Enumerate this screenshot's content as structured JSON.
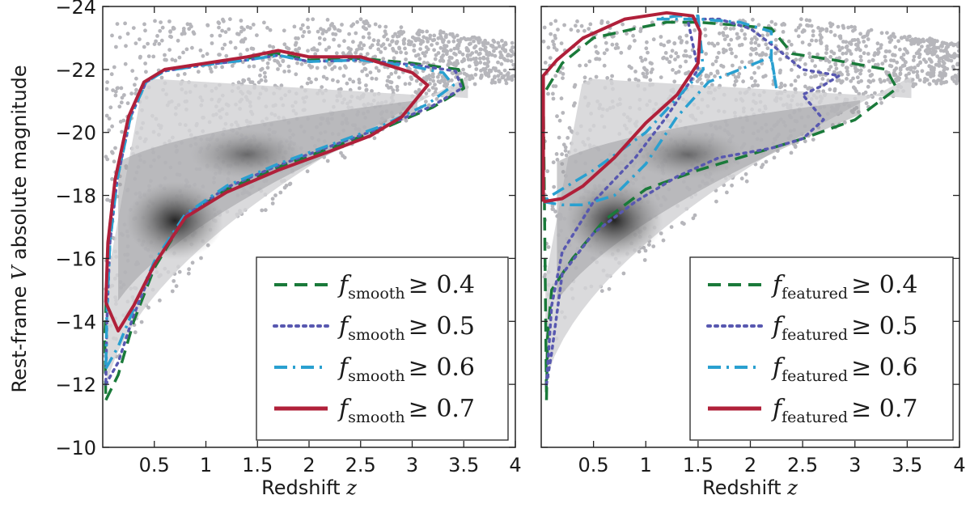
{
  "chart_data": [
    {
      "type": "scatter",
      "panel": "left",
      "xlabel": "Redshift",
      "xlabel_var": "z",
      "ylabel": "Rest-frame V absolute magnitude",
      "xlim": [
        0,
        4
      ],
      "ylim": [
        -10,
        -24
      ],
      "y_inverted": true,
      "grid": false,
      "legend_position": "lower-right",
      "x_ticks": [
        "0.5",
        "1",
        "1.5",
        "2",
        "2.5",
        "3",
        "3.5",
        "4"
      ],
      "y_ticks": [
        "−10",
        "−12",
        "−14",
        "−16",
        "−18",
        "−20",
        "−22",
        "−24"
      ],
      "background": "grey scatter of all galaxies with 2D density histogram (dark core near z≈0.7, V≈−17)",
      "density_peak": {
        "x": 0.7,
        "y": -17.2
      },
      "contours": [
        {
          "label_var": "f",
          "label_sub": "smooth",
          "label_rel": "≥ 0.4",
          "style": "dashed",
          "color": "#1a7a3a",
          "points": [
            [
              0.03,
              -11.5
            ],
            [
              0.15,
              -12.3
            ],
            [
              0.3,
              -14.0
            ],
            [
              0.5,
              -15.7
            ],
            [
              0.8,
              -17.3
            ],
            [
              1.2,
              -18.2
            ],
            [
              1.7,
              -18.9
            ],
            [
              2.2,
              -19.5
            ],
            [
              2.7,
              -20.1
            ],
            [
              3.2,
              -20.8
            ],
            [
              3.5,
              -21.4
            ],
            [
              3.45,
              -22.0
            ],
            [
              3.0,
              -22.2
            ],
            [
              2.5,
              -22.35
            ],
            [
              2.0,
              -22.3
            ],
            [
              1.7,
              -22.5
            ],
            [
              1.4,
              -22.35
            ],
            [
              1.0,
              -22.2
            ],
            [
              0.6,
              -22.0
            ],
            [
              0.4,
              -21.6
            ],
            [
              0.25,
              -20.5
            ],
            [
              0.12,
              -18.5
            ],
            [
              0.05,
              -16.5
            ],
            [
              0.02,
              -13.5
            ],
            [
              0.03,
              -11.5
            ]
          ]
        },
        {
          "label_var": "f",
          "label_sub": "smooth",
          "label_rel": "≥ 0.5",
          "style": "dotted",
          "color": "#5858b0",
          "points": [
            [
              0.03,
              -12.0
            ],
            [
              0.15,
              -12.7
            ],
            [
              0.3,
              -14.2
            ],
            [
              0.5,
              -15.8
            ],
            [
              0.8,
              -17.35
            ],
            [
              1.2,
              -18.25
            ],
            [
              1.7,
              -18.95
            ],
            [
              2.2,
              -19.55
            ],
            [
              2.7,
              -20.15
            ],
            [
              3.2,
              -20.85
            ],
            [
              3.48,
              -21.4
            ],
            [
              3.42,
              -21.95
            ],
            [
              3.0,
              -22.15
            ],
            [
              2.5,
              -22.3
            ],
            [
              2.0,
              -22.25
            ],
            [
              1.7,
              -22.45
            ],
            [
              1.4,
              -22.3
            ],
            [
              1.0,
              -22.15
            ],
            [
              0.6,
              -21.95
            ],
            [
              0.42,
              -21.6
            ],
            [
              0.27,
              -20.5
            ],
            [
              0.14,
              -18.5
            ],
            [
              0.07,
              -16.5
            ],
            [
              0.04,
              -14.0
            ],
            [
              0.03,
              -12.0
            ]
          ]
        },
        {
          "label_var": "f",
          "label_sub": "smooth",
          "label_rel": "≥ 0.6",
          "style": "dashdot",
          "color": "#2aa0d0",
          "points": [
            [
              0.03,
              -12.5
            ],
            [
              0.15,
              -13.2
            ],
            [
              0.3,
              -14.4
            ],
            [
              0.5,
              -15.9
            ],
            [
              0.8,
              -17.4
            ],
            [
              1.2,
              -18.3
            ],
            [
              1.7,
              -19.0
            ],
            [
              2.2,
              -19.6
            ],
            [
              2.7,
              -20.2
            ],
            [
              3.15,
              -20.9
            ],
            [
              3.4,
              -21.5
            ],
            [
              3.3,
              -21.9
            ],
            [
              3.0,
              -22.1
            ],
            [
              2.5,
              -22.3
            ],
            [
              2.0,
              -22.25
            ],
            [
              1.7,
              -22.45
            ],
            [
              1.4,
              -22.3
            ],
            [
              1.0,
              -22.15
            ],
            [
              0.6,
              -21.95
            ],
            [
              0.42,
              -21.6
            ],
            [
              0.27,
              -20.5
            ],
            [
              0.14,
              -18.5
            ],
            [
              0.07,
              -16.5
            ],
            [
              0.04,
              -14.3
            ],
            [
              0.03,
              -12.5
            ]
          ]
        },
        {
          "label_var": "f",
          "label_sub": "smooth",
          "label_rel": "≥ 0.7",
          "style": "solid",
          "color": "#b0203a",
          "points": [
            [
              0.03,
              -14.6
            ],
            [
              0.15,
              -13.7
            ],
            [
              0.3,
              -14.5
            ],
            [
              0.5,
              -15.8
            ],
            [
              0.8,
              -17.3
            ],
            [
              1.2,
              -18.1
            ],
            [
              1.7,
              -18.8
            ],
            [
              2.2,
              -19.4
            ],
            [
              2.6,
              -19.9
            ],
            [
              2.9,
              -20.5
            ],
            [
              3.15,
              -21.5
            ],
            [
              3.0,
              -21.9
            ],
            [
              2.5,
              -22.4
            ],
            [
              2.0,
              -22.4
            ],
            [
              1.7,
              -22.6
            ],
            [
              1.4,
              -22.4
            ],
            [
              1.0,
              -22.2
            ],
            [
              0.6,
              -22.0
            ],
            [
              0.4,
              -21.6
            ],
            [
              0.25,
              -20.5
            ],
            [
              0.12,
              -18.5
            ],
            [
              0.05,
              -16.5
            ],
            [
              0.03,
              -14.6
            ]
          ]
        }
      ]
    },
    {
      "type": "scatter",
      "panel": "right",
      "xlabel": "Redshift",
      "xlabel_var": "z",
      "xlim": [
        0,
        4
      ],
      "ylim": [
        -10,
        -24
      ],
      "y_inverted": true,
      "grid": false,
      "legend_position": "lower-right",
      "x_ticks": [
        "0.5",
        "1",
        "1.5",
        "2",
        "2.5",
        "3",
        "3.5",
        "4"
      ],
      "background": "grey scatter of all galaxies with 2D density histogram (dark core near z≈0.7, V≈−17)",
      "density_peak": {
        "x": 0.7,
        "y": -17.2
      },
      "contours": [
        {
          "label_var": "f",
          "label_sub": "featured",
          "label_rel": "≥ 0.4",
          "style": "dashed",
          "color": "#1a7a3a",
          "points": [
            [
              0.05,
              -11.5
            ],
            [
              0.06,
              -13.5
            ],
            [
              0.1,
              -15.0
            ],
            [
              0.3,
              -16.0
            ],
            [
              0.6,
              -17.2
            ],
            [
              1.0,
              -18.2
            ],
            [
              1.5,
              -18.8
            ],
            [
              2.0,
              -19.3
            ],
            [
              2.5,
              -19.8
            ],
            [
              3.0,
              -20.4
            ],
            [
              3.4,
              -21.4
            ],
            [
              3.3,
              -22.0
            ],
            [
              2.8,
              -22.3
            ],
            [
              2.4,
              -22.5
            ],
            [
              2.2,
              -23.3
            ],
            [
              1.9,
              -23.4
            ],
            [
              1.5,
              -23.5
            ],
            [
              1.2,
              -23.5
            ],
            [
              0.9,
              -23.3
            ],
            [
              0.5,
              -23.0
            ],
            [
              0.2,
              -22.2
            ],
            [
              0.02,
              -21.2
            ],
            [
              0.05,
              -11.5
            ]
          ]
        },
        {
          "label_var": "f",
          "label_sub": "featured",
          "label_rel": "≥ 0.5",
          "style": "dotted",
          "color": "#5858b0",
          "points": [
            [
              0.05,
              -12.0
            ],
            [
              0.1,
              -13.0
            ],
            [
              0.2,
              -15.5
            ],
            [
              0.5,
              -16.8
            ],
            [
              0.9,
              -17.8
            ],
            [
              1.3,
              -18.6
            ],
            [
              1.7,
              -19.2
            ],
            [
              2.2,
              -19.5
            ],
            [
              2.5,
              -19.8
            ],
            [
              2.7,
              -20.4
            ],
            [
              2.5,
              -21.2
            ],
            [
              2.7,
              -21.5
            ],
            [
              2.85,
              -21.8
            ],
            [
              2.5,
              -22.0
            ],
            [
              2.2,
              -22.8
            ],
            [
              2.0,
              -23.3
            ],
            [
              1.7,
              -23.6
            ],
            [
              1.4,
              -23.6
            ],
            [
              1.5,
              -22.0
            ],
            [
              1.2,
              -20.5
            ],
            [
              0.9,
              -19.2
            ],
            [
              0.5,
              -17.8
            ],
            [
              0.2,
              -16.2
            ],
            [
              0.1,
              -14.5
            ],
            [
              0.05,
              -12.0
            ]
          ]
        },
        {
          "label_var": "f",
          "label_sub": "featured",
          "label_rel": "≥ 0.6",
          "style": "dashdot",
          "color": "#2aa0d0",
          "points": [
            [
              0.02,
              -17.8
            ],
            [
              0.2,
              -17.7
            ],
            [
              0.4,
              -17.7
            ],
            [
              0.7,
              -18.0
            ],
            [
              1.0,
              -19.0
            ],
            [
              1.3,
              -20.5
            ],
            [
              1.6,
              -21.6
            ],
            [
              1.9,
              -22.0
            ],
            [
              2.2,
              -22.4
            ],
            [
              2.25,
              -21.4
            ],
            [
              2.2,
              -22.3
            ],
            [
              2.2,
              -23.2
            ],
            [
              1.9,
              -23.5
            ],
            [
              1.5,
              -23.6
            ],
            [
              1.1,
              -23.6
            ],
            [
              1.3,
              -23.7
            ],
            [
              1.5,
              -23.7
            ],
            [
              1.55,
              -22.0
            ],
            [
              1.0,
              -20.0
            ],
            [
              0.5,
              -18.8
            ],
            [
              0.1,
              -18.0
            ],
            [
              0.02,
              -17.8
            ]
          ]
        },
        {
          "label_var": "f",
          "label_sub": "featured",
          "label_rel": "≥ 0.7",
          "style": "solid",
          "color": "#b0203a",
          "points": [
            [
              0.02,
              -17.8
            ],
            [
              0.2,
              -17.9
            ],
            [
              0.4,
              -18.3
            ],
            [
              0.7,
              -19.2
            ],
            [
              1.0,
              -20.3
            ],
            [
              1.3,
              -21.2
            ],
            [
              1.5,
              -22.2
            ],
            [
              1.52,
              -23.2
            ],
            [
              1.45,
              -23.7
            ],
            [
              1.2,
              -23.8
            ],
            [
              0.8,
              -23.6
            ],
            [
              0.4,
              -23.0
            ],
            [
              0.15,
              -22.3
            ],
            [
              0.02,
              -21.8
            ],
            [
              0.02,
              -17.8
            ]
          ]
        }
      ]
    }
  ]
}
